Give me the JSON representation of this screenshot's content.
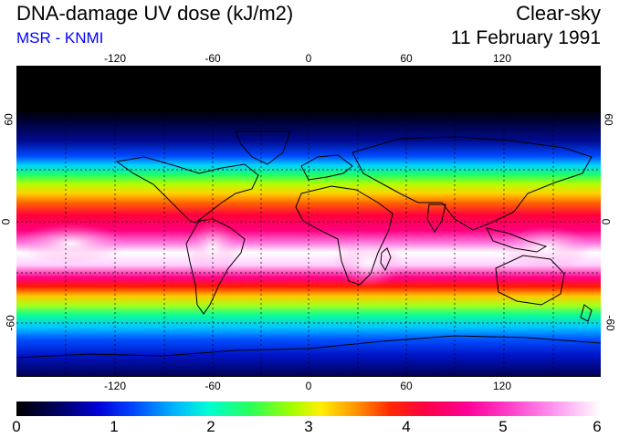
{
  "header": {
    "title": "DNA-damage UV dose (kJ/m2)",
    "subtitle": "MSR - KNMI",
    "condition": "Clear-sky",
    "date": "11 February 1991"
  },
  "map": {
    "lon_ticks": [
      "-120",
      "-60",
      "0",
      "60",
      "120"
    ],
    "lat_ticks_left": [
      "60",
      "0",
      "-60"
    ],
    "lat_ticks_right": [
      "60",
      "0",
      "-60"
    ]
  },
  "colorbar": {
    "labels": [
      "0",
      "1",
      "2",
      "3",
      "4",
      "5",
      "6"
    ],
    "colors": [
      "#000000",
      "#0000d8",
      "#00ffd2",
      "#fff000",
      "#ff2800",
      "#ff0096",
      "#ffffff"
    ]
  }
}
